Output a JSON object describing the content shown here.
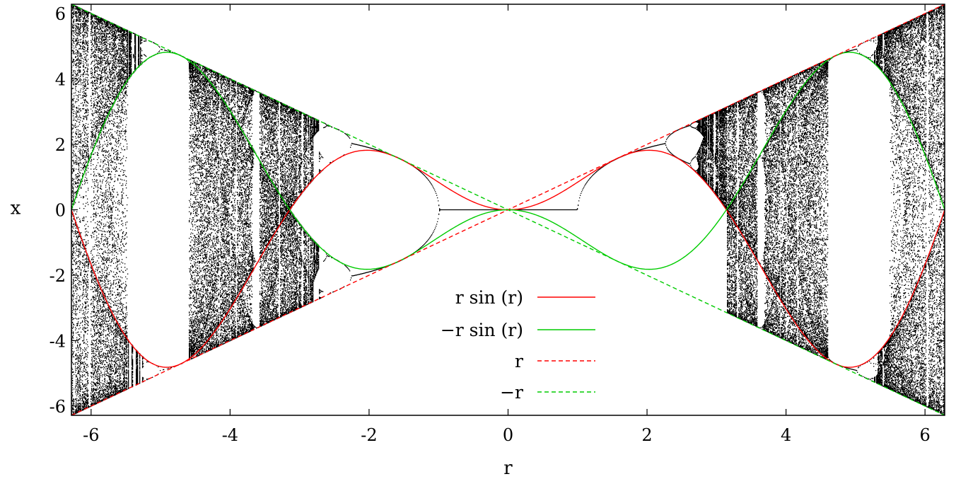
{
  "chart_data": {
    "type": "scatter",
    "title": "",
    "xlabel": "r",
    "ylabel": "x",
    "xlim": [
      -6.2832,
      6.2832
    ],
    "ylim": [
      -6.2832,
      6.2832
    ],
    "x_ticks": [
      -6,
      -4,
      -2,
      0,
      2,
      4,
      6
    ],
    "y_ticks": [
      -6,
      -4,
      -2,
      0,
      2,
      4,
      6
    ],
    "x_tick_labels": [
      "-6",
      "-4",
      "-2",
      "0",
      "2",
      "4",
      "6"
    ],
    "y_tick_labels": [
      "-6",
      "-4",
      "-2",
      "0",
      "2",
      "4",
      "6"
    ],
    "grid": false,
    "legend_position": "bottom-center",
    "scatter_series": {
      "name": "",
      "color": "#000000",
      "map": "x_{n+1} = r sin(x_n)",
      "r_range": [
        -6.2832,
        6.2832
      ]
    },
    "series": [
      {
        "name": "r sin (r)",
        "color": "#ff0000",
        "dash": false,
        "formula": "r*sin(r)"
      },
      {
        "name": "−r sin (r)",
        "color": "#00cc00",
        "dash": false,
        "formula": "-r*sin(r)"
      },
      {
        "name": "r",
        "color": "#ff0000",
        "dash": true,
        "formula": "r"
      },
      {
        "name": "−r",
        "color": "#00cc00",
        "dash": true,
        "formula": "-r"
      }
    ]
  }
}
